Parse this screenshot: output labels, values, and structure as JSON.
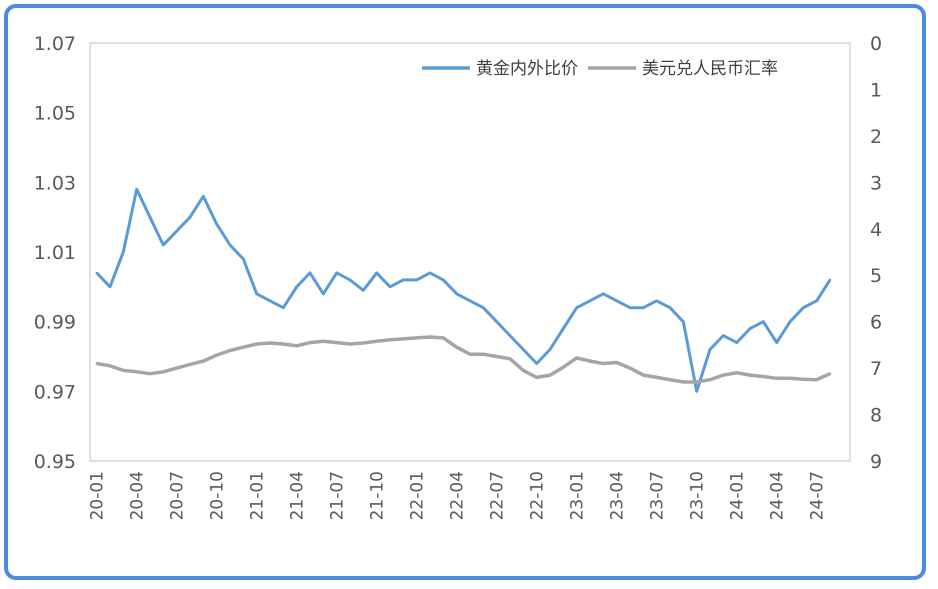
{
  "chart_data": {
    "type": "line",
    "title": "",
    "legend_position": "top-right",
    "grid": false,
    "x_categories": [
      "20-01",
      "20-04",
      "20-07",
      "20-10",
      "21-01",
      "21-04",
      "21-07",
      "21-10",
      "22-01",
      "22-04",
      "22-07",
      "22-10",
      "23-01",
      "23-04",
      "23-07",
      "23-10",
      "24-01",
      "24-04",
      "24-07"
    ],
    "y_left": {
      "min": 0.95,
      "max": 1.07,
      "ticks": [
        "0.95",
        "0.97",
        "0.99",
        "1.01",
        "1.03",
        "1.05",
        "1.07"
      ]
    },
    "y_right": {
      "min": 0,
      "max": 9,
      "inverted": true,
      "ticks": [
        "0",
        "1",
        "2",
        "3",
        "4",
        "5",
        "6",
        "7",
        "8",
        "9"
      ]
    },
    "series": [
      {
        "name": "黄金内外比价",
        "axis": "left",
        "color": "#5b9bd5",
        "x": [
          "20-01",
          "20-02",
          "20-03",
          "20-04",
          "20-05",
          "20-06",
          "20-07",
          "20-08",
          "20-09",
          "20-10",
          "20-11",
          "20-12",
          "21-01",
          "21-02",
          "21-03",
          "21-04",
          "21-05",
          "21-06",
          "21-07",
          "21-08",
          "21-09",
          "21-10",
          "21-11",
          "21-12",
          "22-01",
          "22-02",
          "22-03",
          "22-04",
          "22-05",
          "22-06",
          "22-07",
          "22-08",
          "22-09",
          "22-10",
          "22-11",
          "22-12",
          "23-01",
          "23-02",
          "23-03",
          "23-04",
          "23-05",
          "23-06",
          "23-07",
          "23-08",
          "23-09",
          "23-10",
          "23-11",
          "23-12",
          "24-01",
          "24-02",
          "24-03",
          "24-04",
          "24-05",
          "24-06",
          "24-07",
          "24-08"
        ],
        "values": [
          1.004,
          1.0,
          1.01,
          1.028,
          1.02,
          1.012,
          1.016,
          1.02,
          1.026,
          1.018,
          1.012,
          1.008,
          0.998,
          0.996,
          0.994,
          1.0,
          1.004,
          0.998,
          1.004,
          1.002,
          0.999,
          1.004,
          1.0,
          1.002,
          1.002,
          1.004,
          1.002,
          0.998,
          0.996,
          0.994,
          0.99,
          0.986,
          0.982,
          0.978,
          0.982,
          0.988,
          0.994,
          0.996,
          0.998,
          0.996,
          0.994,
          0.994,
          0.996,
          0.994,
          0.99,
          0.97,
          0.982,
          0.986,
          0.984,
          0.988,
          0.99,
          0.984,
          0.99,
          0.994,
          0.996,
          1.002
        ]
      },
      {
        "name": "美元兑人民币汇率",
        "axis": "right",
        "color": "#a5a5a5",
        "x": [
          "20-01",
          "20-02",
          "20-03",
          "20-04",
          "20-05",
          "20-06",
          "20-07",
          "20-08",
          "20-09",
          "20-10",
          "20-11",
          "20-12",
          "21-01",
          "21-02",
          "21-03",
          "21-04",
          "21-05",
          "21-06",
          "21-07",
          "21-08",
          "21-09",
          "21-10",
          "21-11",
          "21-12",
          "22-01",
          "22-02",
          "22-03",
          "22-04",
          "22-05",
          "22-06",
          "22-07",
          "22-08",
          "22-09",
          "22-10",
          "22-11",
          "22-12",
          "23-01",
          "23-02",
          "23-03",
          "23-04",
          "23-05",
          "23-06",
          "23-07",
          "23-08",
          "23-09",
          "23-10",
          "23-11",
          "23-12",
          "24-01",
          "24-02",
          "24-03",
          "24-04",
          "24-05",
          "24-06",
          "24-07",
          "24-08"
        ],
        "values": [
          6.9,
          6.95,
          7.05,
          7.08,
          7.12,
          7.08,
          7.0,
          6.92,
          6.85,
          6.72,
          6.62,
          6.55,
          6.48,
          6.46,
          6.48,
          6.52,
          6.45,
          6.42,
          6.45,
          6.48,
          6.46,
          6.42,
          6.39,
          6.37,
          6.35,
          6.33,
          6.35,
          6.55,
          6.7,
          6.7,
          6.75,
          6.8,
          7.05,
          7.2,
          7.15,
          6.98,
          6.78,
          6.85,
          6.9,
          6.88,
          7.0,
          7.15,
          7.2,
          7.25,
          7.3,
          7.3,
          7.25,
          7.15,
          7.1,
          7.15,
          7.18,
          7.22,
          7.22,
          7.24,
          7.25,
          7.12
        ]
      }
    ]
  }
}
